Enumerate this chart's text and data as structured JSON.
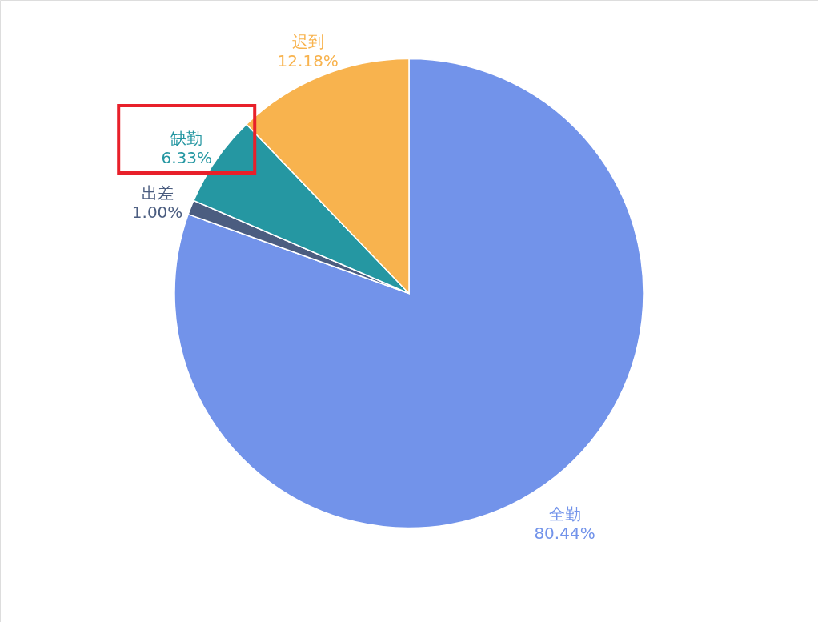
{
  "chart_data": {
    "type": "pie",
    "categories": [
      "全勤",
      "出差",
      "缺勤",
      "迟到"
    ],
    "values": [
      80.44,
      1.0,
      6.33,
      12.18
    ],
    "value_labels": [
      "80.44%",
      "1.00%",
      "6.33%",
      "12.18%"
    ],
    "colors": [
      "#7293ea",
      "#4b5d80",
      "#2597a2",
      "#f8b34e"
    ]
  }
}
